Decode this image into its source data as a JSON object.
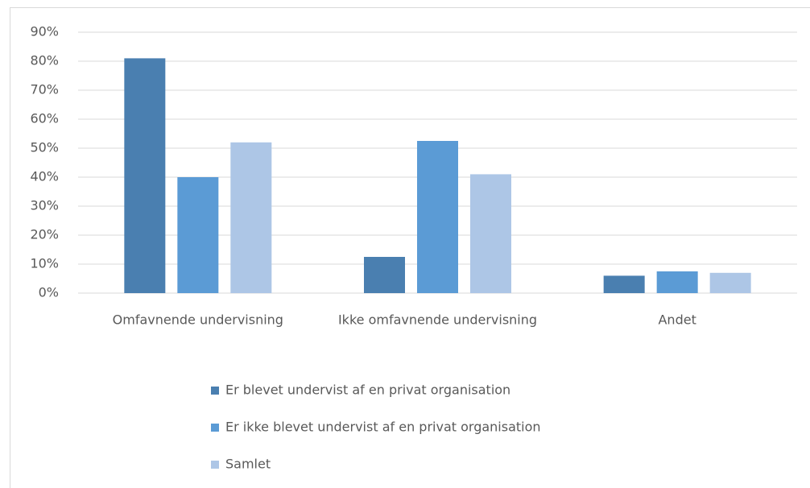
{
  "chart_data": {
    "type": "bar",
    "categories": [
      "Omfavnende undervisning",
      "Ikke omfavnende undervisning",
      "Andet"
    ],
    "series": [
      {
        "name": "Er blevet undervist af en privat organisation",
        "color": "#4a7fb0",
        "values": [
          81,
          12.5,
          6
        ]
      },
      {
        "name": "Er ikke blevet undervist af en privat organisation",
        "color": "#5b9bd5",
        "values": [
          40,
          52.5,
          7.5
        ]
      },
      {
        "name": "Samlet",
        "color": "#adc6e6",
        "values": [
          52,
          41,
          7
        ]
      }
    ],
    "ylim": [
      0,
      90
    ],
    "yticks": [
      {
        "value": 0,
        "label": "0%"
      },
      {
        "value": 10,
        "label": "10%"
      },
      {
        "value": 20,
        "label": "20%"
      },
      {
        "value": 30,
        "label": "30%"
      },
      {
        "value": 40,
        "label": "40%"
      },
      {
        "value": 50,
        "label": "50%"
      },
      {
        "value": 60,
        "label": "60%"
      },
      {
        "value": 70,
        "label": "70%"
      },
      {
        "value": 80,
        "label": "80%"
      },
      {
        "value": 90,
        "label": "90%"
      }
    ],
    "grid": true,
    "legend": "bottom"
  }
}
